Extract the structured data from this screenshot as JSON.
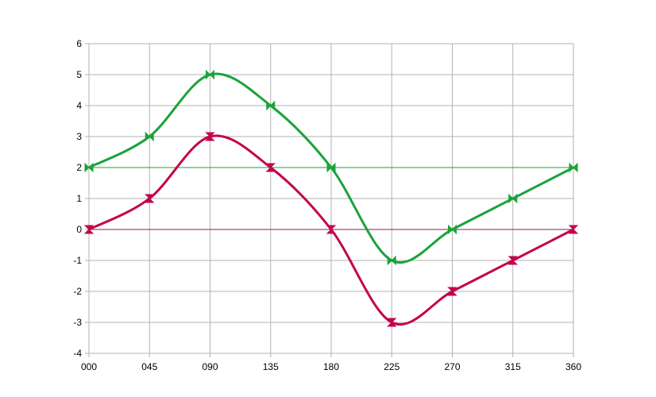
{
  "chart_data": {
    "type": "line",
    "title": "",
    "xlabel": "",
    "ylabel": "",
    "categories": [
      "000",
      "045",
      "090",
      "135",
      "180",
      "225",
      "270",
      "315",
      "360"
    ],
    "yticks": [
      "-4",
      "-3",
      "-2",
      "-1",
      "0",
      "1",
      "2",
      "3",
      "4",
      "5",
      "6"
    ],
    "ylim": [
      -4,
      6
    ],
    "grid": true,
    "legend": "none",
    "smooth": true,
    "series": [
      {
        "values": [
          2,
          3,
          5,
          4,
          2,
          -1,
          0,
          1,
          2
        ],
        "color": "#1aa33a",
        "marker": "bowtie-horizontal"
      },
      {
        "values": [
          0,
          1,
          3,
          2,
          0,
          -3,
          -2,
          -1,
          0
        ],
        "color": "#c4044d",
        "marker": "bowtie-vertical"
      }
    ],
    "reference_lines": [
      {
        "y": 2,
        "color": "#1aa33a"
      },
      {
        "y": 0,
        "color": "#8b1a5c"
      }
    ]
  }
}
